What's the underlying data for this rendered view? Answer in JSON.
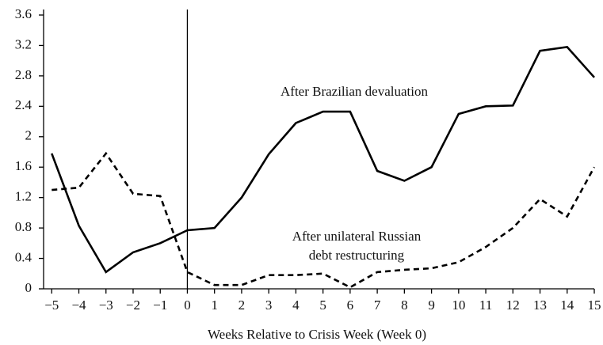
{
  "chart_data": {
    "type": "line",
    "x_label": "Weeks Relative to Crisis Week (Week 0)",
    "x": [
      -5,
      -4,
      -3,
      -2,
      -1,
      0,
      1,
      2,
      3,
      4,
      5,
      6,
      7,
      8,
      9,
      10,
      11,
      12,
      13,
      14,
      15
    ],
    "series": [
      {
        "color": "#000000",
        "dash": "solid",
        "values": [
          1.78,
          0.83,
          0.22,
          0.48,
          0.6,
          0.77,
          0.8,
          1.2,
          1.77,
          2.18,
          2.33,
          2.33,
          1.55,
          1.42,
          1.6,
          2.3,
          2.4,
          2.41,
          3.13,
          3.18,
          2.78
        ]
      },
      {
        "color": "#000000",
        "dash": "dashed",
        "values": [
          1.3,
          1.33,
          1.78,
          1.25,
          1.22,
          0.22,
          0.05,
          0.05,
          0.18,
          0.18,
          0.2,
          0.02,
          0.22,
          0.25,
          0.27,
          0.35,
          0.55,
          0.8,
          1.18,
          0.95,
          1.6
        ]
      }
    ],
    "annotations": [
      "After Brazilian devaluation",
      "After unilateral Russian",
      "debt restructuring"
    ],
    "vline": 0,
    "xlim": [
      -5.3,
      15
    ],
    "ylim": [
      0,
      3.6
    ],
    "xticks": [
      {
        "value": -5,
        "label": "−5"
      },
      {
        "value": -4,
        "label": "−4"
      },
      {
        "value": -3,
        "label": "−3"
      },
      {
        "value": -2,
        "label": "−2"
      },
      {
        "value": -1,
        "label": "−1"
      },
      0,
      1,
      2,
      3,
      4,
      5,
      6,
      7,
      8,
      9,
      10,
      11,
      12,
      13,
      14,
      15
    ],
    "yticks": [
      0,
      0.4,
      0.8,
      1.2,
      1.6,
      2,
      2.4,
      2.8,
      3.2,
      3.6
    ],
    "grid": false
  }
}
